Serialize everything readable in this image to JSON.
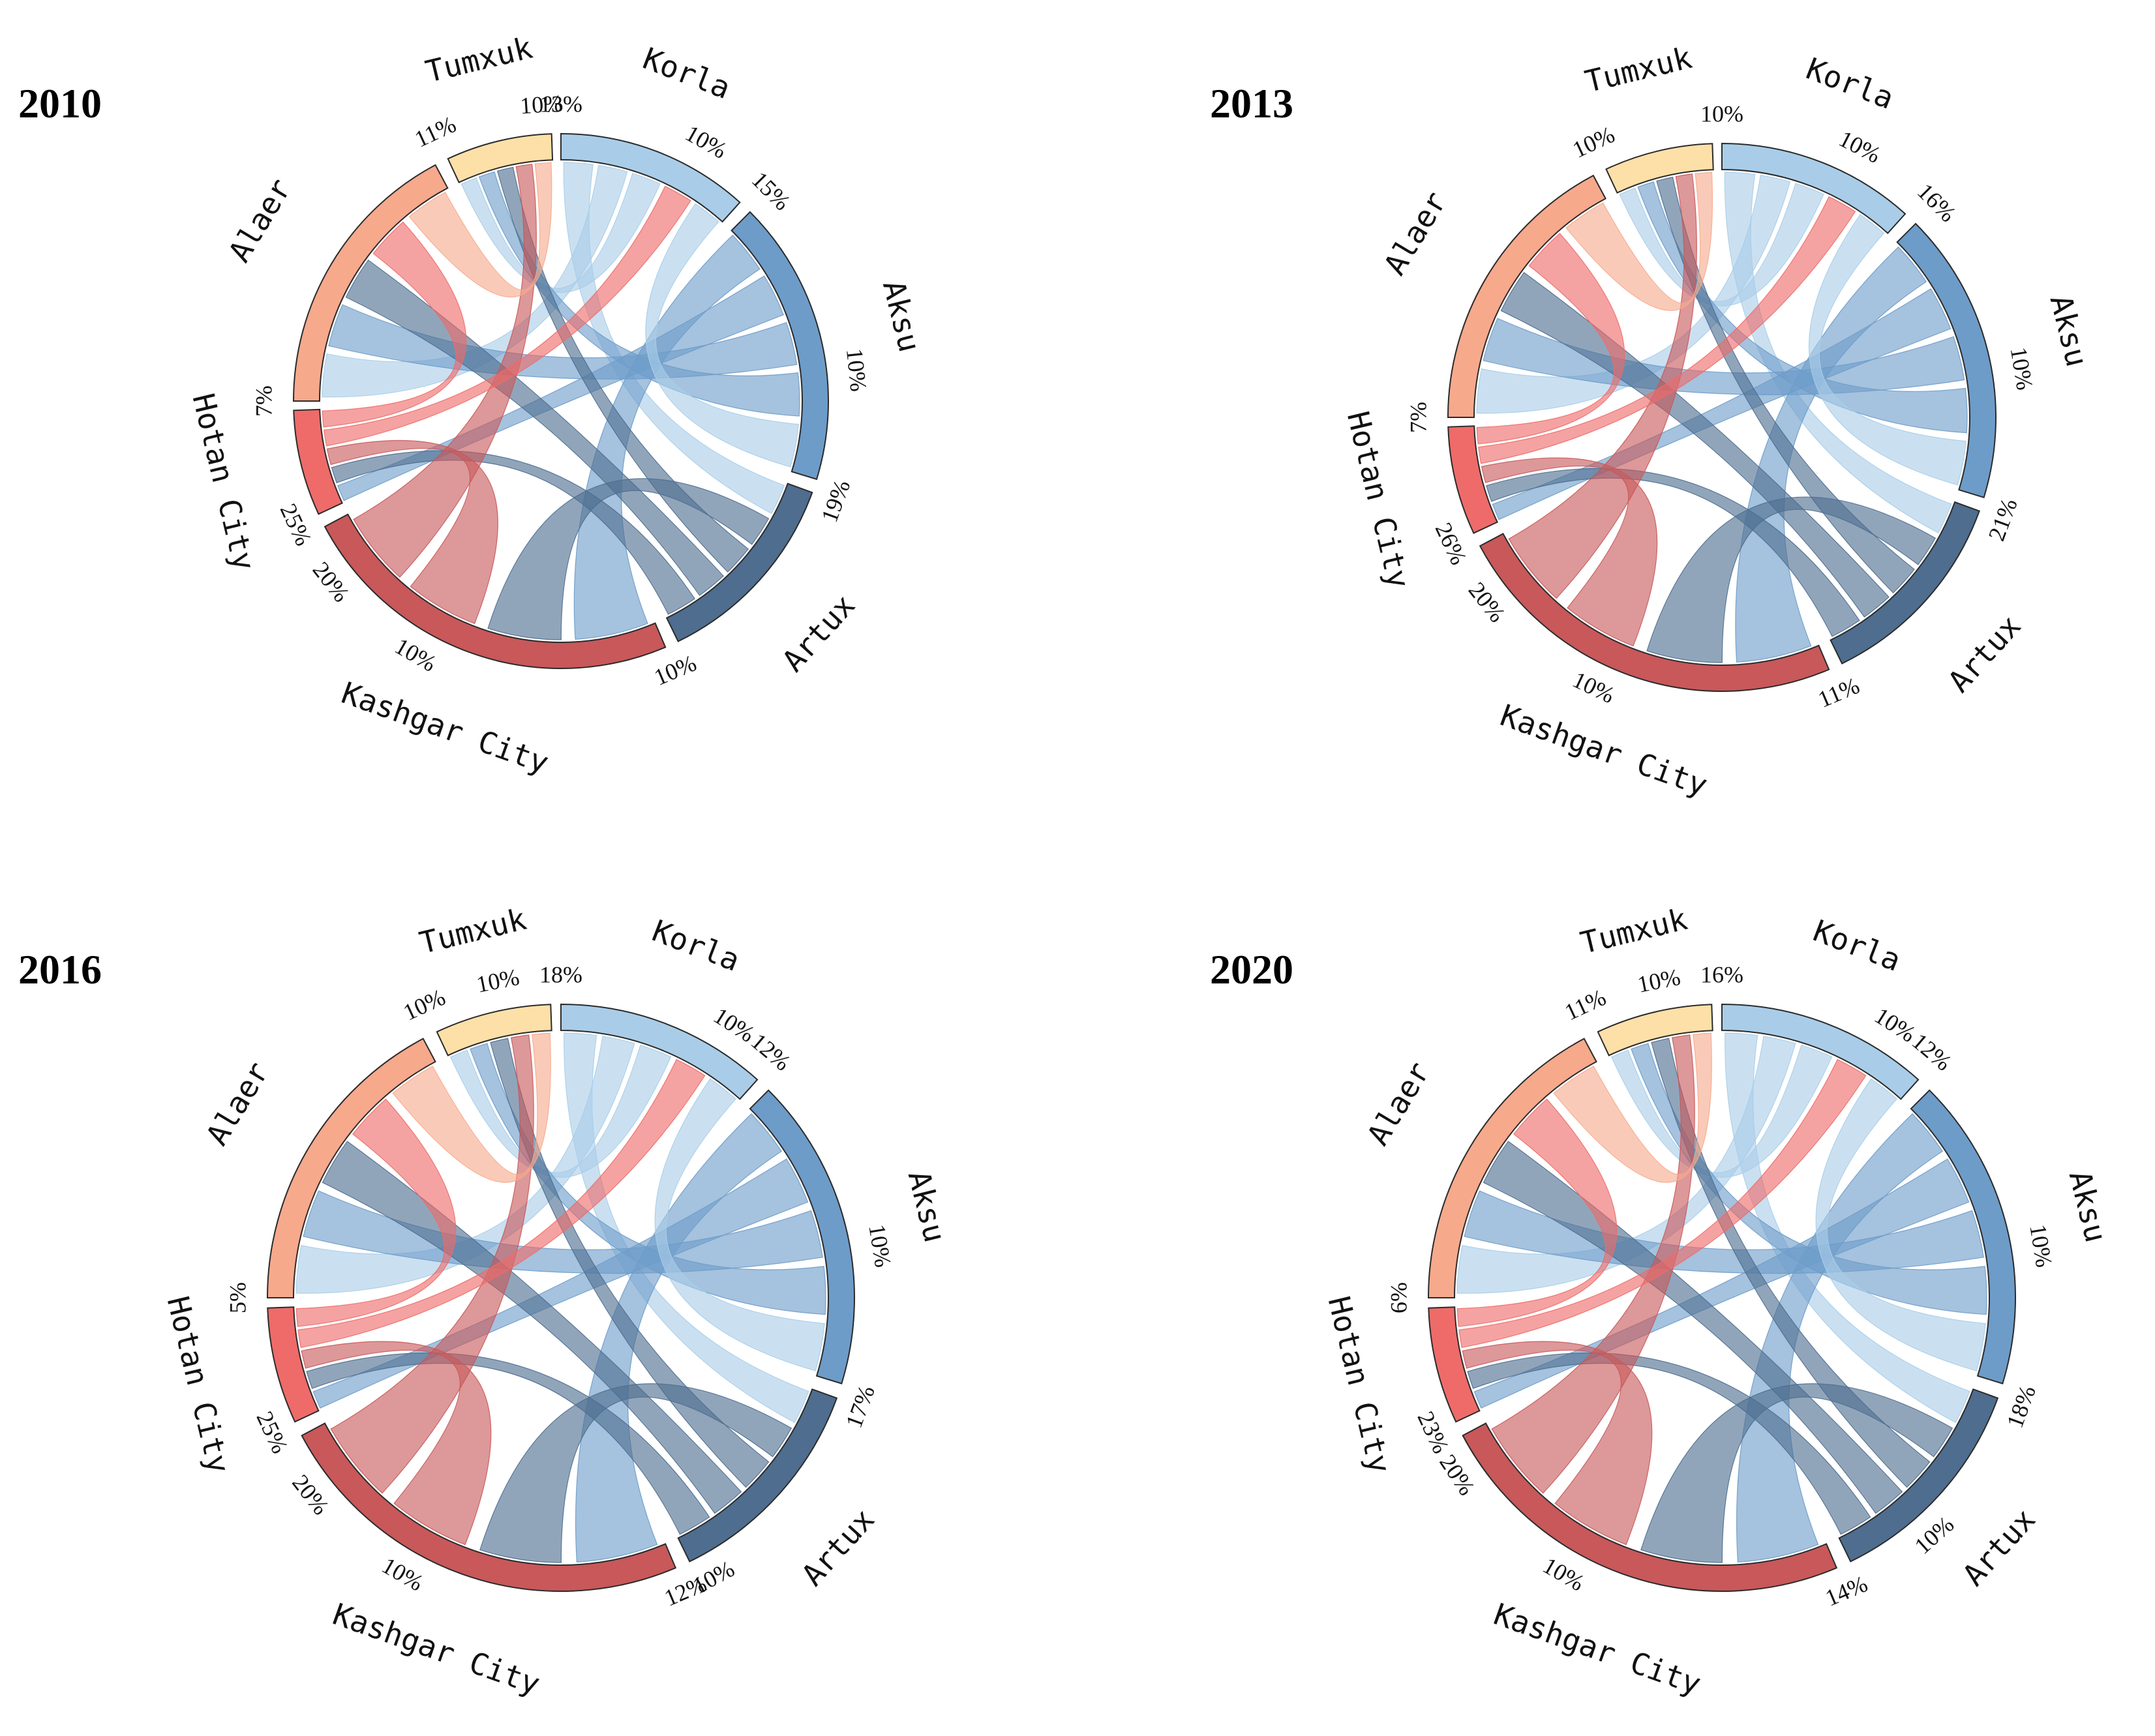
{
  "colors": {
    "Korla": "#a9cde8",
    "Aksu": "#6d9cc9",
    "Artux": "#4e6d8f",
    "Kashgar City": "#c8585a",
    "Hotan City": "#ee6b69",
    "Alaer": "#f7a98c",
    "Tumxuk": "#fde0a8"
  },
  "chart_data": [
    {
      "type": "chord",
      "year": "2010",
      "cities": [
        "Korla",
        "Aksu",
        "Artux",
        "Kashgar City",
        "Hotan City",
        "Alaer",
        "Tumxuk"
      ],
      "shares": [
        10,
        15,
        13,
        25,
        7,
        11,
        10
      ],
      "percent_ticks": [
        {
          "text": "13%",
          "pos": 0.0
        },
        {
          "text": "10%",
          "pos": 0.65
        },
        {
          "text": "15%",
          "pos": 1.0
        },
        {
          "text": "10%",
          "pos": 1.6
        },
        {
          "text": "19%",
          "pos": 2.0
        },
        {
          "text": "10%",
          "pos": 3.0
        },
        {
          "text": "10%",
          "pos": 3.6
        },
        {
          "text": "20%",
          "pos": 3.85
        },
        {
          "text": "25%",
          "pos": 4.0
        },
        {
          "text": "7%",
          "pos": 5.0
        },
        {
          "text": "11%",
          "pos": 6.0
        },
        {
          "text": "10%",
          "pos": 6.85
        }
      ],
      "flows": [
        [
          "Korla",
          "Artux"
        ],
        [
          "Korla",
          "Alaer"
        ],
        [
          "Korla",
          "Tumxuk"
        ],
        [
          "Aksu",
          "Kashgar City"
        ],
        [
          "Aksu",
          "Hotan City"
        ],
        [
          "Aksu",
          "Alaer"
        ],
        [
          "Aksu",
          "Tumxuk"
        ],
        [
          "Artux",
          "Kashgar City"
        ],
        [
          "Artux",
          "Tumxuk"
        ],
        [
          "Artux",
          "Alaer"
        ],
        [
          "Artux",
          "Hotan City"
        ],
        [
          "Kashgar City",
          "Hotan City"
        ],
        [
          "Kashgar City",
          "Tumxuk"
        ],
        [
          "Hotan City",
          "Korla"
        ],
        [
          "Hotan City",
          "Alaer"
        ],
        [
          "Alaer",
          "Tumxuk"
        ],
        [
          "Korla",
          "Aksu"
        ]
      ]
    },
    {
      "type": "chord",
      "year": "2013",
      "cities": [
        "Korla",
        "Aksu",
        "Artux",
        "Kashgar City",
        "Hotan City",
        "Alaer",
        "Tumxuk"
      ],
      "shares": [
        10,
        16,
        11,
        26,
        7,
        10,
        10
      ],
      "percent_ticks": [
        {
          "text": "10%",
          "pos": 0.0
        },
        {
          "text": "10%",
          "pos": 0.6
        },
        {
          "text": "16%",
          "pos": 1.0
        },
        {
          "text": "10%",
          "pos": 1.55
        },
        {
          "text": "21%",
          "pos": 2.0
        },
        {
          "text": "11%",
          "pos": 3.0
        },
        {
          "text": "10%",
          "pos": 3.55
        },
        {
          "text": "20%",
          "pos": 3.85
        },
        {
          "text": "26%",
          "pos": 4.0
        },
        {
          "text": "7%",
          "pos": 5.0
        },
        {
          "text": "10%",
          "pos": 6.0
        }
      ],
      "flows": [
        [
          "Korla",
          "Artux"
        ],
        [
          "Korla",
          "Alaer"
        ],
        [
          "Korla",
          "Tumxuk"
        ],
        [
          "Aksu",
          "Kashgar City"
        ],
        [
          "Aksu",
          "Hotan City"
        ],
        [
          "Aksu",
          "Alaer"
        ],
        [
          "Aksu",
          "Tumxuk"
        ],
        [
          "Artux",
          "Kashgar City"
        ],
        [
          "Artux",
          "Tumxuk"
        ],
        [
          "Artux",
          "Alaer"
        ],
        [
          "Artux",
          "Hotan City"
        ],
        [
          "Kashgar City",
          "Hotan City"
        ],
        [
          "Kashgar City",
          "Tumxuk"
        ],
        [
          "Hotan City",
          "Korla"
        ],
        [
          "Hotan City",
          "Alaer"
        ],
        [
          "Alaer",
          "Tumxuk"
        ],
        [
          "Korla",
          "Aksu"
        ]
      ]
    },
    {
      "type": "chord",
      "year": "2016",
      "cities": [
        "Korla",
        "Aksu",
        "Artux",
        "Kashgar City",
        "Hotan City",
        "Alaer",
        "Tumxuk"
      ],
      "shares": [
        10,
        17,
        12,
        25,
        5,
        10,
        18
      ],
      "percent_ticks": [
        {
          "text": "18%",
          "pos": 0.0
        },
        {
          "text": "10%",
          "pos": 0.72
        },
        {
          "text": "12%",
          "pos": 0.9
        },
        {
          "text": "10%",
          "pos": 1.55
        },
        {
          "text": "17%",
          "pos": 2.0
        },
        {
          "text": "10%",
          "pos": 2.88
        },
        {
          "text": "12%",
          "pos": 3.0
        },
        {
          "text": "10%",
          "pos": 3.6
        },
        {
          "text": "20%",
          "pos": 3.85
        },
        {
          "text": "25%",
          "pos": 4.0
        },
        {
          "text": "5%",
          "pos": 5.0
        },
        {
          "text": "10%",
          "pos": 6.0
        },
        {
          "text": "10%",
          "pos": 6.55
        }
      ],
      "flows": [
        [
          "Korla",
          "Artux"
        ],
        [
          "Korla",
          "Alaer"
        ],
        [
          "Korla",
          "Tumxuk"
        ],
        [
          "Aksu",
          "Kashgar City"
        ],
        [
          "Aksu",
          "Hotan City"
        ],
        [
          "Aksu",
          "Alaer"
        ],
        [
          "Aksu",
          "Tumxuk"
        ],
        [
          "Artux",
          "Kashgar City"
        ],
        [
          "Artux",
          "Tumxuk"
        ],
        [
          "Artux",
          "Alaer"
        ],
        [
          "Artux",
          "Hotan City"
        ],
        [
          "Kashgar City",
          "Hotan City"
        ],
        [
          "Kashgar City",
          "Tumxuk"
        ],
        [
          "Hotan City",
          "Korla"
        ],
        [
          "Hotan City",
          "Alaer"
        ],
        [
          "Alaer",
          "Tumxuk"
        ],
        [
          "Korla",
          "Aksu"
        ]
      ]
    },
    {
      "type": "chord",
      "year": "2020",
      "cities": [
        "Korla",
        "Aksu",
        "Artux",
        "Kashgar City",
        "Hotan City",
        "Alaer",
        "Tumxuk"
      ],
      "shares": [
        10,
        18,
        14,
        23,
        6,
        11,
        16
      ],
      "percent_ticks": [
        {
          "text": "16%",
          "pos": 0.0
        },
        {
          "text": "10%",
          "pos": 0.72
        },
        {
          "text": "12%",
          "pos": 0.9
        },
        {
          "text": "10%",
          "pos": 1.55
        },
        {
          "text": "18%",
          "pos": 2.0
        },
        {
          "text": "10%",
          "pos": 2.6
        },
        {
          "text": "14%",
          "pos": 3.0
        },
        {
          "text": "10%",
          "pos": 3.6
        },
        {
          "text": "20%",
          "pos": 3.9
        },
        {
          "text": "23%",
          "pos": 4.0
        },
        {
          "text": "6%",
          "pos": 5.0
        },
        {
          "text": "11%",
          "pos": 6.0
        },
        {
          "text": "10%",
          "pos": 6.55
        }
      ],
      "flows": [
        [
          "Korla",
          "Artux"
        ],
        [
          "Korla",
          "Alaer"
        ],
        [
          "Korla",
          "Tumxuk"
        ],
        [
          "Aksu",
          "Kashgar City"
        ],
        [
          "Aksu",
          "Hotan City"
        ],
        [
          "Aksu",
          "Alaer"
        ],
        [
          "Aksu",
          "Tumxuk"
        ],
        [
          "Artux",
          "Kashgar City"
        ],
        [
          "Artux",
          "Tumxuk"
        ],
        [
          "Artux",
          "Alaer"
        ],
        [
          "Artux",
          "Hotan City"
        ],
        [
          "Kashgar City",
          "Hotan City"
        ],
        [
          "Kashgar City",
          "Tumxuk"
        ],
        [
          "Hotan City",
          "Korla"
        ],
        [
          "Hotan City",
          "Alaer"
        ],
        [
          "Alaer",
          "Tumxuk"
        ],
        [
          "Korla",
          "Aksu"
        ]
      ]
    }
  ]
}
